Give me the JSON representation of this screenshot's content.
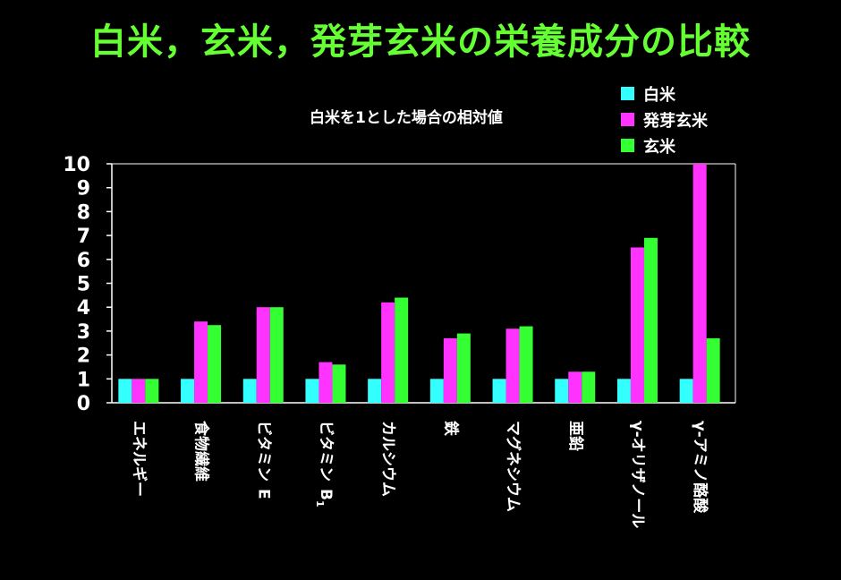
{
  "chart_data": {
    "type": "bar",
    "title": "白米，玄米，発芽玄米の栄養成分の比較",
    "subtitle": "白米を1とした場合の相対値",
    "categories": [
      "エネルギー",
      "食物繊維",
      "ビタミンE",
      "ビタミンB1",
      "カルシウム",
      "鉄",
      "マグネシウム",
      "亜鉛",
      "γ-オリザノール",
      "γ-アミノ酪酸"
    ],
    "category_labels": [
      {
        "main": "エネルギー"
      },
      {
        "main": "食物繊維"
      },
      {
        "main": "ビタミン",
        "tail": "E"
      },
      {
        "main": "ビタミン",
        "tail": "B",
        "sub": "1"
      },
      {
        "main": "カルシウム"
      },
      {
        "main": "鉄"
      },
      {
        "main": "マグネシウム"
      },
      {
        "main": "亜鉛"
      },
      {
        "main": "γ-オリザノール"
      },
      {
        "main": "γ-アミノ酪酸"
      }
    ],
    "series": [
      {
        "name": "白米",
        "color": "#33ffff",
        "values": [
          1,
          1,
          1,
          1,
          1,
          1,
          1,
          1,
          1,
          1
        ]
      },
      {
        "name": "発芽玄米",
        "color": "#ff33ff",
        "values": [
          1,
          3.4,
          4.0,
          1.7,
          4.2,
          2.7,
          3.1,
          1.3,
          6.5,
          10
        ]
      },
      {
        "name": "玄米",
        "color": "#33ff33",
        "values": [
          1,
          3.25,
          4.0,
          1.6,
          4.4,
          2.9,
          3.2,
          1.3,
          6.9,
          2.7
        ]
      }
    ],
    "y_ticks": [
      "0",
      "1",
      "2",
      "3",
      "4",
      "5",
      "6",
      "7",
      "8",
      "9",
      "10"
    ],
    "ylim": [
      0,
      10
    ],
    "grid": false,
    "legend_position": "top-right"
  }
}
